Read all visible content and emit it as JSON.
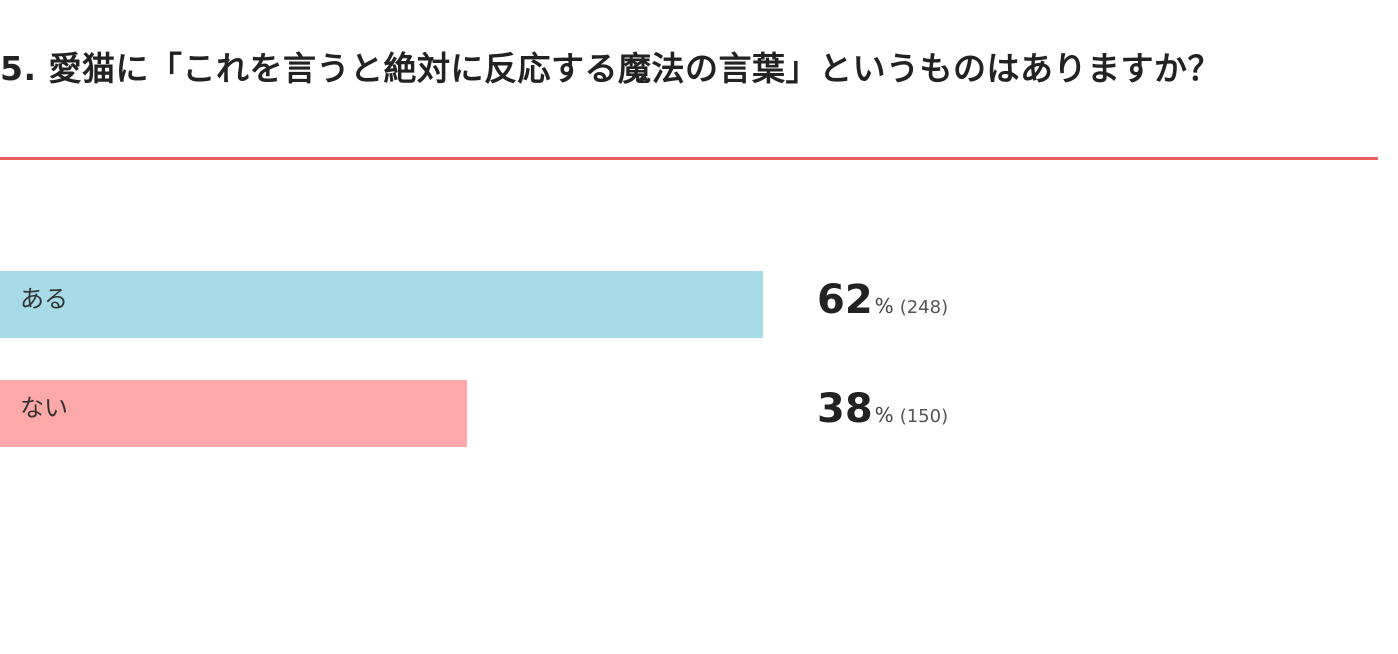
{
  "chart_data": {
    "type": "bar",
    "orientation": "horizontal",
    "title": "5. 愛猫に「これを言うと絶対に反応する魔法の言葉」というものはありますか？",
    "categories": [
      "ある",
      "ない"
    ],
    "values": [
      62,
      38
    ],
    "unit": "%",
    "counts": [
      248,
      150
    ],
    "count_labels": [
      "(248)",
      "(150)"
    ],
    "colors": [
      "#a7dbe7",
      "#ffa8aa"
    ],
    "title_rule_color": "#ec5f5f"
  }
}
